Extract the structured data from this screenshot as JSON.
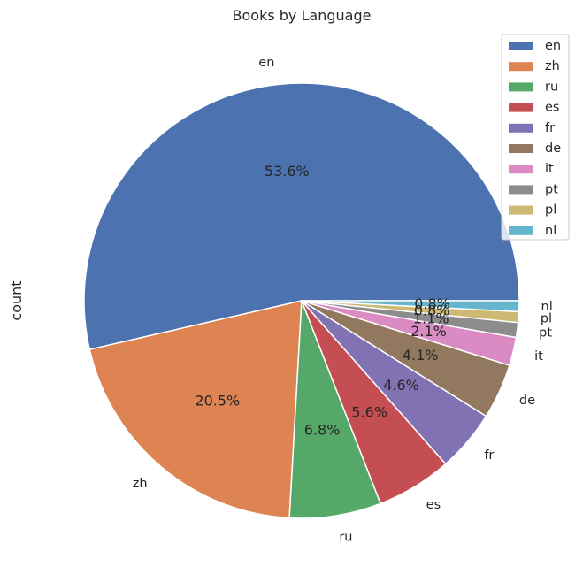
{
  "chart_data": {
    "type": "pie",
    "title": "Books by Language",
    "ylabel": "count",
    "categories": [
      "en",
      "zh",
      "ru",
      "es",
      "fr",
      "de",
      "it",
      "pt",
      "pl",
      "nl"
    ],
    "percent_labels": [
      "53.6%",
      "20.5%",
      "6.8%",
      "5.6%",
      "4.6%",
      "4.1%",
      "2.1%",
      "1.1%",
      "0.8%",
      "0.8%"
    ],
    "values": [
      53.6,
      20.5,
      6.8,
      5.6,
      4.6,
      4.1,
      2.1,
      1.1,
      0.8,
      0.8
    ],
    "colors": [
      "#4c72b0",
      "#dd8452",
      "#55a868",
      "#c44e52",
      "#8172b3",
      "#937860",
      "#da8bc3",
      "#8c8c8c",
      "#ccb974",
      "#64b5cd"
    ],
    "legend_position": "upper-right",
    "start_angle": "0",
    "direction": "counterclockwise"
  }
}
